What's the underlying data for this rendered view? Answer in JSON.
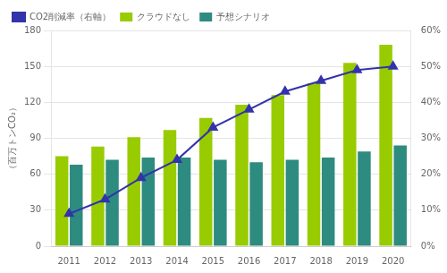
{
  "chart_data": {
    "type": "bar",
    "ylabel": "（百万トンCO₂）",
    "categories": [
      "2011",
      "2012",
      "2013",
      "2014",
      "2015",
      "2016",
      "2017",
      "2018",
      "2019",
      "2020"
    ],
    "series": [
      {
        "name": "クラウドなし",
        "type": "bar",
        "color": "#99cc00",
        "values": [
          75,
          83,
          91,
          97,
          107,
          118,
          126,
          136,
          153,
          168
        ]
      },
      {
        "name": "予想シナリオ",
        "type": "bar",
        "color": "#2e8b80",
        "values": [
          68,
          72,
          74,
          74,
          72,
          70,
          72,
          74,
          79,
          84
        ]
      },
      {
        "name": "CO2削減率（右軸）",
        "type": "line",
        "axis": "y2",
        "marker": "triangle",
        "color": "#3333aa",
        "values": [
          9,
          13,
          19,
          24,
          33,
          38,
          43,
          46,
          49,
          50
        ]
      }
    ],
    "ylim": [
      0,
      180
    ],
    "yticks": [
      0,
      30,
      60,
      90,
      120,
      150,
      180
    ],
    "y2lim": [
      0,
      60
    ],
    "y2ticks": [
      {
        "value": 0,
        "label": "0%"
      },
      {
        "value": 10,
        "label": "10%"
      },
      {
        "value": 20,
        "label": "20%"
      },
      {
        "value": 30,
        "label": "30%"
      },
      {
        "value": 40,
        "label": "40%"
      },
      {
        "value": 50,
        "label": "50%"
      },
      {
        "value": 60,
        "label": "60%"
      }
    ],
    "grid": true,
    "legend": "upper left"
  }
}
